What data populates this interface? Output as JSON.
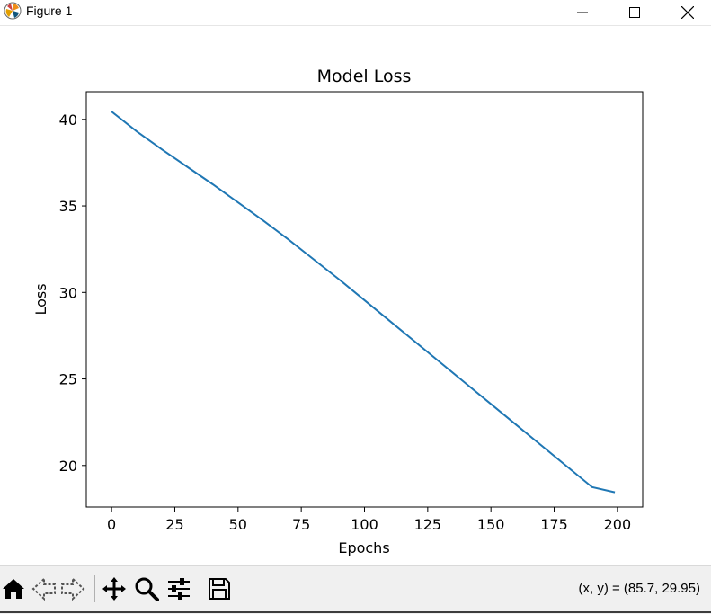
{
  "window": {
    "title": "Figure 1",
    "icons": {
      "app": "matplotlib-logo-icon",
      "minimize": "minimize-icon",
      "maximize": "maximize-icon",
      "close": "close-icon"
    }
  },
  "toolbar": {
    "icons": [
      "home-icon",
      "back-arrow-icon",
      "forward-arrow-icon",
      "pan-icon",
      "zoom-icon",
      "configure-subplots-icon",
      "save-icon"
    ],
    "coords_text": "(x, y) = (85.7, 29.95)"
  },
  "chart_data": {
    "type": "line",
    "title": "Model Loss",
    "xlabel": "Epochs",
    "ylabel": "Loss",
    "xlim": [
      -10,
      210
    ],
    "ylim": [
      17.6,
      41.6
    ],
    "xticks": [
      0,
      25,
      50,
      75,
      100,
      125,
      150,
      175,
      200
    ],
    "yticks": [
      20,
      25,
      30,
      35,
      40
    ],
    "grid": false,
    "line_color": "#1f77b4",
    "series": [
      {
        "x": [
          0,
          10,
          20,
          30,
          40,
          50,
          60,
          70,
          80,
          90,
          100,
          110,
          120,
          130,
          140,
          150,
          160,
          170,
          180,
          190,
          199
        ],
        "values": [
          40.45,
          39.3,
          38.25,
          37.25,
          36.25,
          35.2,
          34.15,
          33.05,
          31.9,
          30.75,
          29.55,
          28.35,
          27.15,
          25.95,
          24.75,
          23.55,
          22.35,
          21.15,
          19.95,
          18.75,
          18.45
        ]
      }
    ]
  }
}
